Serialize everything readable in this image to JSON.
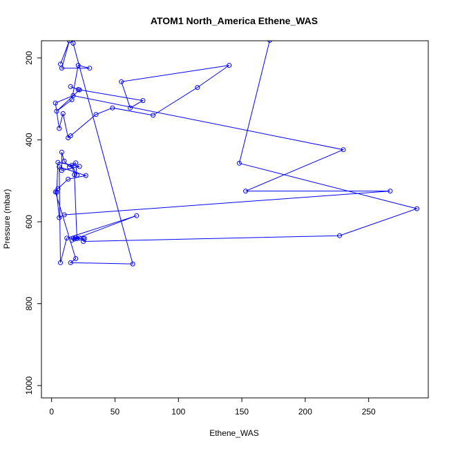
{
  "chart_data": {
    "type": "line",
    "title": "ATOM1 North_America Ethene_WAS",
    "xlabel": "Ethene_WAS",
    "ylabel": "Pressure (mbar)",
    "xlim": [
      -8,
      297
    ],
    "ylim": [
      1030,
      158
    ],
    "y_reversed": true,
    "x_ticks": [
      0,
      50,
      100,
      150,
      200,
      250
    ],
    "y_ticks": [
      200,
      400,
      600,
      800,
      1000
    ],
    "grid": false,
    "legend": "none",
    "color": "#0000ff",
    "series": [
      {
        "x": [
          7,
          14,
          8,
          30,
          21,
          16,
          4,
          22,
          15,
          21,
          72,
          62,
          55,
          140,
          115,
          80,
          48,
          35,
          15,
          13,
          9,
          6,
          3,
          17,
          230,
          153,
          267,
          10,
          6,
          4,
          5,
          22,
          8,
          8,
          10,
          14,
          19,
          20,
          16,
          18,
          20,
          22,
          19,
          17,
          25,
          26,
          18,
          16,
          67,
          12,
          7,
          6,
          27,
          13,
          5,
          3,
          19,
          15,
          64,
          17,
          14,
          172,
          148,
          288,
          227,
          25
        ],
        "y": [
          215,
          158,
          225,
          225,
          218,
          302,
          330,
          278,
          270,
          277,
          304,
          322,
          258,
          218,
          272,
          340,
          322,
          338,
          390,
          395,
          336,
          372,
          310,
          292,
          424,
          525,
          525,
          583,
          590,
          528,
          455,
          465,
          475,
          430,
          452,
          466,
          456,
          486,
          462,
          485,
          641,
          640,
          638,
          640,
          641,
          641,
          642,
          645,
          585,
          640,
          700,
          466,
          487,
          496,
          519,
          527,
          690,
          700,
          703,
          164,
          150,
          157,
          457,
          568,
          634,
          648
        ]
      }
    ]
  }
}
